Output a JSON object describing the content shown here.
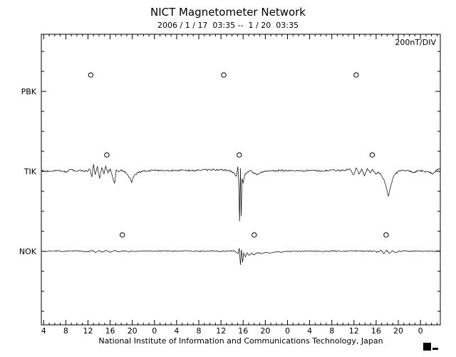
{
  "page": {
    "title": "NICT Magnetometer Network",
    "subtitle": "2006 / 1 / 17  03:35 --  1 / 20  03:35",
    "scale_label": "200nT/DIV",
    "caption": "National Institute of Information and Communications Technology, Japan"
  },
  "chart_data": {
    "type": "line",
    "title": "NICT Magnetometer Network",
    "subtitle": "2006 / 1 / 17  03:35 --  1 / 20  03:35",
    "scale_per_division": "200nT/DIV",
    "nT_per_division": 200,
    "line_color": "#000000",
    "background": "#ffffff",
    "x_axis": {
      "start_hour": 3.583,
      "end_hour": 75.583,
      "first_tick_hour": 4,
      "tick_interval_hours": 4,
      "minor_tick_interval_hours": 1,
      "tick_labels": [
        "4",
        "8",
        "12",
        "16",
        "20",
        "0",
        "4",
        "8",
        "12",
        "16",
        "20",
        "0",
        "4",
        "8",
        "12",
        "16",
        "20",
        "0"
      ]
    },
    "marker_offset_nT": 41,
    "stations": [
      {
        "name": "PBK",
        "noon_marker_hours": [
          12.5,
          36.5,
          60.4
        ],
        "noise_nT": 0,
        "points": []
      },
      {
        "name": "TIK",
        "noon_marker_hours": [
          15.4,
          39.3,
          63.3
        ],
        "noise_nT": 2.2,
        "points": [
          [
            3.6,
            2
          ],
          [
            5,
            0
          ],
          [
            6.5,
            2
          ],
          [
            8,
            -1
          ],
          [
            9,
            4
          ],
          [
            10,
            0
          ],
          [
            11,
            2
          ],
          [
            12.0,
            0
          ],
          [
            12.3,
            6
          ],
          [
            12.7,
            -14
          ],
          [
            13.0,
            18
          ],
          [
            13.3,
            -8
          ],
          [
            13.7,
            12
          ],
          [
            14.1,
            -18
          ],
          [
            14.5,
            10
          ],
          [
            14.9,
            -6
          ],
          [
            15.2,
            14
          ],
          [
            15.6,
            -4
          ],
          [
            16.0,
            6
          ],
          [
            16.4,
            -12
          ],
          [
            16.8,
            -30
          ],
          [
            17.1,
            4
          ],
          [
            17.6,
            0
          ],
          [
            18.2,
            3
          ],
          [
            19.0,
            -6
          ],
          [
            19.6,
            -16
          ],
          [
            19.9,
            -28
          ],
          [
            20.3,
            -12
          ],
          [
            21.0,
            -3
          ],
          [
            22,
            1
          ],
          [
            24,
            3
          ],
          [
            26,
            1
          ],
          [
            28,
            3
          ],
          [
            30,
            2
          ],
          [
            32,
            3
          ],
          [
            34,
            4
          ],
          [
            36,
            4
          ],
          [
            37.5,
            2
          ],
          [
            38.3,
            -4
          ],
          [
            38.8,
            -12
          ],
          [
            39.05,
            12
          ],
          [
            39.2,
            -30
          ],
          [
            39.35,
            -125
          ],
          [
            39.5,
            8
          ],
          [
            39.65,
            -112
          ],
          [
            39.8,
            -18
          ],
          [
            40.0,
            -30
          ],
          [
            40.3,
            -8
          ],
          [
            40.7,
            -2
          ],
          [
            41.2,
            2
          ],
          [
            42.0,
            -4
          ],
          [
            42.5,
            -9
          ],
          [
            43.2,
            -2
          ],
          [
            44,
            1
          ],
          [
            46,
            2
          ],
          [
            48,
            2
          ],
          [
            50,
            1
          ],
          [
            52,
            2
          ],
          [
            54,
            1
          ],
          [
            56,
            3
          ],
          [
            58,
            2
          ],
          [
            59.3,
            6
          ],
          [
            59.9,
            -9
          ],
          [
            60.4,
            9
          ],
          [
            60.9,
            -7
          ],
          [
            61.4,
            6
          ],
          [
            61.9,
            -11
          ],
          [
            62.4,
            7
          ],
          [
            62.9,
            -4
          ],
          [
            63.4,
            5
          ],
          [
            63.9,
            -7
          ],
          [
            64.4,
            -2
          ],
          [
            64.9,
            -9
          ],
          [
            65.4,
            -20
          ],
          [
            65.9,
            -45
          ],
          [
            66.2,
            -62
          ],
          [
            66.6,
            -40
          ],
          [
            67.0,
            -18
          ],
          [
            67.5,
            -6
          ],
          [
            68.1,
            0
          ],
          [
            69,
            2
          ],
          [
            70,
            1
          ],
          [
            70.8,
            -4
          ],
          [
            71.5,
            2
          ],
          [
            72.5,
            1
          ],
          [
            73.5,
            -2
          ],
          [
            74.3,
            -6
          ],
          [
            74.8,
            2
          ],
          [
            75.5,
            6
          ]
        ]
      },
      {
        "name": "NOK",
        "noon_marker_hours": [
          18.2,
          42.0,
          65.8
        ],
        "noise_nT": 1.2,
        "points": [
          [
            3.6,
            0
          ],
          [
            6,
            1
          ],
          [
            8,
            0
          ],
          [
            10,
            1
          ],
          [
            12,
            -1
          ],
          [
            12.8,
            2
          ],
          [
            13.4,
            -3
          ],
          [
            14.0,
            2
          ],
          [
            14.6,
            -2
          ],
          [
            15.3,
            2
          ],
          [
            16.0,
            -2
          ],
          [
            16.8,
            2
          ],
          [
            17.5,
            -1
          ],
          [
            18.3,
            1
          ],
          [
            19.2,
            -1
          ],
          [
            20,
            0
          ],
          [
            22,
            1
          ],
          [
            24,
            0
          ],
          [
            26,
            1
          ],
          [
            28,
            0
          ],
          [
            30,
            1
          ],
          [
            32,
            0
          ],
          [
            34,
            1
          ],
          [
            36,
            0
          ],
          [
            37.5,
            1
          ],
          [
            38.6,
            0
          ],
          [
            39.1,
            -6
          ],
          [
            39.3,
            8
          ],
          [
            39.5,
            -34
          ],
          [
            39.7,
            4
          ],
          [
            39.9,
            -28
          ],
          [
            40.1,
            -4
          ],
          [
            40.4,
            -14
          ],
          [
            40.7,
            -4
          ],
          [
            41.1,
            -10
          ],
          [
            41.5,
            -4
          ],
          [
            42.0,
            -9
          ],
          [
            42.6,
            -3
          ],
          [
            43.3,
            -6
          ],
          [
            44.0,
            -3
          ],
          [
            45,
            -4
          ],
          [
            46,
            -1
          ],
          [
            47,
            -2
          ],
          [
            48,
            0
          ],
          [
            50,
            0
          ],
          [
            52,
            1
          ],
          [
            54,
            0
          ],
          [
            56,
            1
          ],
          [
            58,
            0
          ],
          [
            60,
            1
          ],
          [
            62,
            0
          ],
          [
            63.5,
            1
          ],
          [
            64.3,
            -2
          ],
          [
            64.9,
            3
          ],
          [
            65.4,
            -6
          ],
          [
            65.9,
            3
          ],
          [
            66.4,
            -5
          ],
          [
            66.9,
            2
          ],
          [
            67.4,
            -3
          ],
          [
            68,
            0
          ],
          [
            69,
            1
          ],
          [
            70,
            0
          ],
          [
            71,
            1
          ],
          [
            72,
            0
          ],
          [
            73,
            1
          ],
          [
            74,
            0
          ],
          [
            75.5,
            1
          ]
        ]
      }
    ]
  }
}
